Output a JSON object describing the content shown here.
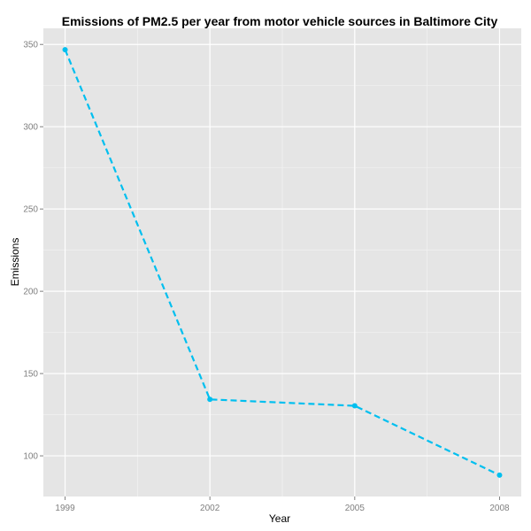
{
  "chart_data": {
    "type": "line",
    "title": "Emissions of PM2.5 per year from motor vehicle sources in Baltimore City",
    "xlabel": "Year",
    "ylabel": "Emissions",
    "x": [
      1999,
      2002,
      2005,
      2008
    ],
    "series": [
      {
        "values": [
          346.8,
          134.3,
          130.4,
          88.3
        ]
      }
    ],
    "xticks": [
      1999,
      2002,
      2005,
      2008
    ],
    "xtick_labels": [
      "1999",
      "2002",
      "2005",
      "2008"
    ],
    "yticks": [
      100,
      150,
      200,
      250,
      300,
      350
    ],
    "ytick_labels": [
      "100",
      "150",
      "200",
      "250",
      "300",
      "350"
    ],
    "xlim": [
      1998.55,
      2008.45
    ],
    "ylim": [
      75.3,
      359.8
    ],
    "grid": true,
    "line_style": "dashed",
    "colors": {
      "series": "#00bfef",
      "panel": "#e5e5e5",
      "grid_major": "#ffffff",
      "grid_minor": "#f2f2f2"
    }
  }
}
